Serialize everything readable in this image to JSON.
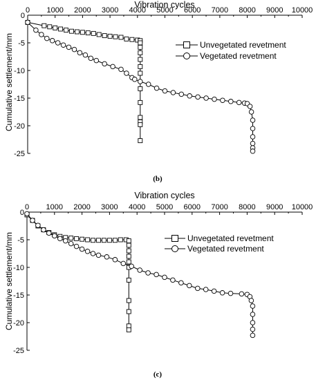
{
  "chart_data": [
    {
      "type": "scatter",
      "panel_label": "(b)",
      "title": "Vibration cycles",
      "xlabel": "Vibration cycles",
      "ylabel": "Cumulative settlement/mm",
      "xlim": [
        0,
        10000
      ],
      "ylim": [
        -25,
        0
      ],
      "x_ticks": [
        0,
        1000,
        2000,
        3000,
        4000,
        5000,
        6000,
        7000,
        8000,
        9000,
        10000
      ],
      "y_ticks": [
        0,
        -5,
        -10,
        -15,
        -20,
        -25
      ],
      "x_axis_position": "top",
      "grid": false,
      "legend_position": "top-right",
      "series": [
        {
          "name": "Unvegetated revetment",
          "marker": "square",
          "points": [
            [
              0,
              -1.3
            ],
            [
              600,
              -1.9
            ],
            [
              800,
              -2.1
            ],
            [
              1000,
              -2.3
            ],
            [
              1200,
              -2.5
            ],
            [
              1400,
              -2.7
            ],
            [
              1600,
              -2.9
            ],
            [
              1800,
              -3.0
            ],
            [
              2000,
              -3.1
            ],
            [
              2200,
              -3.2
            ],
            [
              2400,
              -3.3
            ],
            [
              2600,
              -3.5
            ],
            [
              2800,
              -3.7
            ],
            [
              3000,
              -3.8
            ],
            [
              3200,
              -3.9
            ],
            [
              3400,
              -4.0
            ],
            [
              3600,
              -4.3
            ],
            [
              3800,
              -4.4
            ],
            [
              4000,
              -4.5
            ],
            [
              4100,
              -4.6
            ],
            [
              4100,
              -5.0
            ],
            [
              4100,
              -5.8
            ],
            [
              4100,
              -6.8
            ],
            [
              4100,
              -8.0
            ],
            [
              4100,
              -9.3
            ],
            [
              4100,
              -10.5
            ],
            [
              4100,
              -13.3
            ],
            [
              4100,
              -15.8
            ],
            [
              4100,
              -18.5
            ],
            [
              4100,
              -19.3
            ],
            [
              4100,
              -19.8
            ],
            [
              4100,
              -22.7
            ]
          ]
        },
        {
          "name": "Vegetated revetment",
          "marker": "circle",
          "points": [
            [
              0,
              -1.3
            ],
            [
              300,
              -2.7
            ],
            [
              500,
              -3.5
            ],
            [
              700,
              -4.2
            ],
            [
              900,
              -4.6
            ],
            [
              1100,
              -5.0
            ],
            [
              1300,
              -5.4
            ],
            [
              1500,
              -5.8
            ],
            [
              1700,
              -6.2
            ],
            [
              1900,
              -6.8
            ],
            [
              2100,
              -7.2
            ],
            [
              2300,
              -7.8
            ],
            [
              2500,
              -8.2
            ],
            [
              2800,
              -8.8
            ],
            [
              3100,
              -9.3
            ],
            [
              3400,
              -9.8
            ],
            [
              3600,
              -10.5
            ],
            [
              3800,
              -11.3
            ],
            [
              3900,
              -11.6
            ],
            [
              4100,
              -12.0
            ],
            [
              4400,
              -12.5
            ],
            [
              4700,
              -13.2
            ],
            [
              5000,
              -13.7
            ],
            [
              5300,
              -14.0
            ],
            [
              5600,
              -14.3
            ],
            [
              5900,
              -14.6
            ],
            [
              6200,
              -14.8
            ],
            [
              6500,
              -15.0
            ],
            [
              6800,
              -15.2
            ],
            [
              7100,
              -15.4
            ],
            [
              7400,
              -15.6
            ],
            [
              7700,
              -15.8
            ],
            [
              7900,
              -15.9
            ],
            [
              8000,
              -16.0
            ],
            [
              8100,
              -16.5
            ],
            [
              8150,
              -17.5
            ],
            [
              8200,
              -19.0
            ],
            [
              8200,
              -20.5
            ],
            [
              8200,
              -22.0
            ],
            [
              8200,
              -23.2
            ],
            [
              8200,
              -24.0
            ],
            [
              8200,
              -24.6
            ]
          ]
        }
      ]
    },
    {
      "type": "scatter",
      "panel_label": "(c)",
      "title": "Vibration cycles",
      "xlabel": "Vibration cycles",
      "ylabel": "Cumulative settlement/mm",
      "xlim": [
        0,
        10000
      ],
      "ylim": [
        -25,
        0
      ],
      "x_ticks": [
        0,
        1000,
        2000,
        3000,
        4000,
        5000,
        6000,
        7000,
        8000,
        9000,
        10000
      ],
      "x_tick_labels": [
        "0",
        "1000",
        "2000",
        "3000",
        "4000",
        "5000",
        "6000",
        "7000",
        "8000",
        "9000",
        "10000"
      ],
      "y_ticks": [
        0,
        -5,
        -10,
        -15,
        -20,
        -25
      ],
      "x_axis_position": "top",
      "grid": false,
      "legend_position": "top-right",
      "series": [
        {
          "name": "Unvegetated revetment",
          "marker": "square",
          "points": [
            [
              0,
              -0.5
            ],
            [
              200,
              -1.5
            ],
            [
              400,
              -2.5
            ],
            [
              600,
              -3.2
            ],
            [
              800,
              -3.7
            ],
            [
              1000,
              -4.1
            ],
            [
              1200,
              -4.4
            ],
            [
              1400,
              -4.6
            ],
            [
              1600,
              -4.7
            ],
            [
              1800,
              -4.8
            ],
            [
              2000,
              -4.9
            ],
            [
              2200,
              -5.0
            ],
            [
              2400,
              -5.1
            ],
            [
              2600,
              -5.1
            ],
            [
              2800,
              -5.1
            ],
            [
              3000,
              -5.1
            ],
            [
              3200,
              -5.1
            ],
            [
              3400,
              -5.0
            ],
            [
              3600,
              -5.0
            ],
            [
              3700,
              -5.2
            ],
            [
              3700,
              -6.0
            ],
            [
              3700,
              -7.0
            ],
            [
              3700,
              -8.0
            ],
            [
              3700,
              -9.0
            ],
            [
              3700,
              -10.0
            ],
            [
              3700,
              -12.3
            ],
            [
              3700,
              -16.0
            ],
            [
              3700,
              -18.0
            ],
            [
              3700,
              -20.6
            ],
            [
              3700,
              -21.3
            ]
          ]
        },
        {
          "name": "Vegetated revetment",
          "marker": "circle",
          "points": [
            [
              0,
              -0.3
            ],
            [
              200,
              -1.5
            ],
            [
              400,
              -2.4
            ],
            [
              600,
              -3.2
            ],
            [
              800,
              -3.8
            ],
            [
              1000,
              -4.3
            ],
            [
              1200,
              -4.8
            ],
            [
              1400,
              -5.2
            ],
            [
              1600,
              -5.7
            ],
            [
              1800,
              -6.2
            ],
            [
              2000,
              -6.7
            ],
            [
              2200,
              -7.1
            ],
            [
              2400,
              -7.5
            ],
            [
              2600,
              -7.8
            ],
            [
              2900,
              -8.1
            ],
            [
              3200,
              -8.6
            ],
            [
              3500,
              -9.3
            ],
            [
              3800,
              -9.8
            ],
            [
              4100,
              -10.5
            ],
            [
              4400,
              -11.0
            ],
            [
              4700,
              -11.3
            ],
            [
              5000,
              -11.8
            ],
            [
              5300,
              -12.3
            ],
            [
              5600,
              -12.8
            ],
            [
              5900,
              -13.3
            ],
            [
              6200,
              -13.8
            ],
            [
              6500,
              -14.0
            ],
            [
              6800,
              -14.3
            ],
            [
              7100,
              -14.6
            ],
            [
              7400,
              -14.7
            ],
            [
              7800,
              -14.8
            ],
            [
              8000,
              -14.9
            ],
            [
              8100,
              -15.3
            ],
            [
              8150,
              -16.0
            ],
            [
              8200,
              -17.0
            ],
            [
              8200,
              -18.5
            ],
            [
              8200,
              -20.0
            ],
            [
              8200,
              -21.2
            ],
            [
              8200,
              -22.3
            ]
          ]
        }
      ]
    }
  ]
}
